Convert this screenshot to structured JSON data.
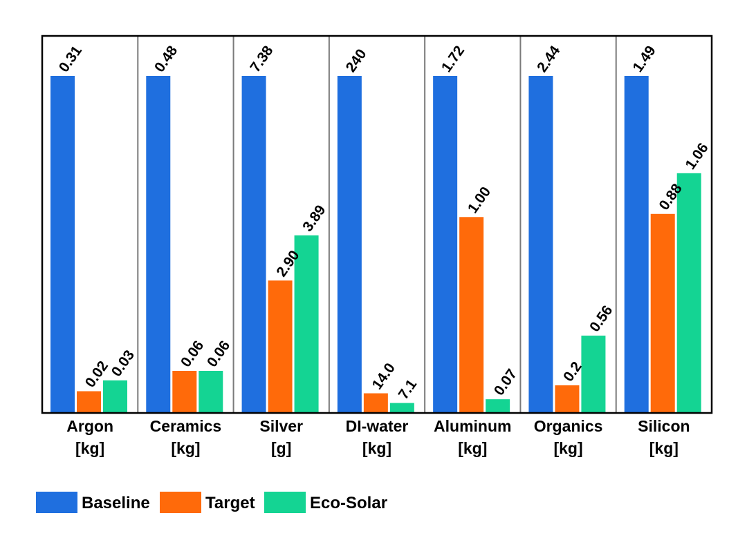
{
  "chart_data": {
    "type": "bar",
    "normalization": "each category scaled to its Baseline value (Baseline = full height)",
    "categories": [
      {
        "name": "Argon",
        "unit": "[kg]"
      },
      {
        "name": "Ceramics",
        "unit": "[kg]"
      },
      {
        "name": "Silver",
        "unit": "[g]"
      },
      {
        "name": "DI-water",
        "unit": "[kg]"
      },
      {
        "name": "Aluminum",
        "unit": "[kg]"
      },
      {
        "name": "Organics",
        "unit": "[kg]"
      },
      {
        "name": "Silicon",
        "unit": "[kg]"
      }
    ],
    "series": [
      {
        "name": "Baseline",
        "color": "#1f6fdf",
        "values": [
          0.31,
          0.48,
          7.38,
          240,
          1.72,
          2.44,
          1.49
        ],
        "labels": [
          "0.31",
          "0.48",
          "7.38",
          "240",
          "1.72",
          "2.44",
          "1.49"
        ]
      },
      {
        "name": "Target",
        "color": "#ff6a0a",
        "values": [
          0.02,
          0.06,
          2.9,
          14.0,
          1.0,
          0.2,
          0.88
        ],
        "labels": [
          "0.02",
          "0.06",
          "2.90",
          "14.0",
          "1.00",
          "0.2",
          "0.88"
        ]
      },
      {
        "name": "Eco-Solar",
        "color": "#14d493",
        "values": [
          0.03,
          0.06,
          3.89,
          7.1,
          0.07,
          0.56,
          1.06
        ],
        "labels": [
          "0.03",
          "0.06",
          "3.89",
          "7.1",
          "0.07",
          "0.56",
          "1.06"
        ]
      }
    ],
    "title": "",
    "xlabel": "",
    "ylabel": "",
    "grid": false,
    "legend_position": "bottom-left"
  }
}
